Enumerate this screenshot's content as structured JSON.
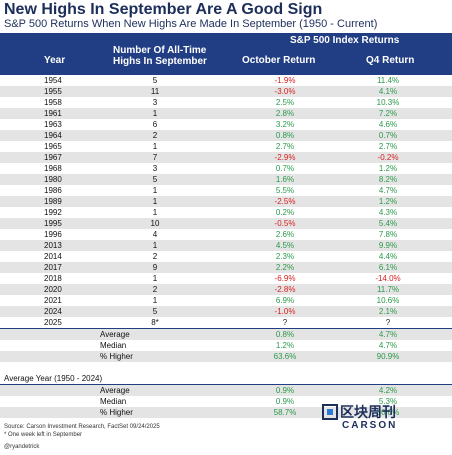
{
  "title": "New Highs In September Are A Good Sign",
  "subtitle": "S&P 500 Returns When New Highs Are Made In September (1950 - Current)",
  "header": {
    "index_returns": "S&P 500 Index Returns",
    "year": "Year",
    "num_line1": "Number Of All-Time",
    "num_line2": "Highs In September",
    "october": "October Return",
    "q4": "Q4 Return"
  },
  "rows": [
    {
      "year": "1954",
      "num": "5",
      "oct": "-1.9%",
      "q4": "11.4%"
    },
    {
      "year": "1955",
      "num": "11",
      "oct": "-3.0%",
      "q4": "4.1%"
    },
    {
      "year": "1958",
      "num": "3",
      "oct": "2.5%",
      "q4": "10.3%"
    },
    {
      "year": "1961",
      "num": "1",
      "oct": "2.8%",
      "q4": "7.2%"
    },
    {
      "year": "1963",
      "num": "6",
      "oct": "3.2%",
      "q4": "4.6%"
    },
    {
      "year": "1964",
      "num": "2",
      "oct": "0.8%",
      "q4": "0.7%"
    },
    {
      "year": "1965",
      "num": "1",
      "oct": "2.7%",
      "q4": "2.7%"
    },
    {
      "year": "1967",
      "num": "7",
      "oct": "-2.9%",
      "q4": "-0.2%"
    },
    {
      "year": "1968",
      "num": "3",
      "oct": "0.7%",
      "q4": "1.2%"
    },
    {
      "year": "1980",
      "num": "5",
      "oct": "1.6%",
      "q4": "8.2%"
    },
    {
      "year": "1986",
      "num": "1",
      "oct": "5.5%",
      "q4": "4.7%"
    },
    {
      "year": "1989",
      "num": "1",
      "oct": "-2.5%",
      "q4": "1.2%"
    },
    {
      "year": "1992",
      "num": "1",
      "oct": "0.2%",
      "q4": "4.3%"
    },
    {
      "year": "1995",
      "num": "10",
      "oct": "-0.5%",
      "q4": "5.4%"
    },
    {
      "year": "1996",
      "num": "4",
      "oct": "2.6%",
      "q4": "7.8%"
    },
    {
      "year": "2013",
      "num": "1",
      "oct": "4.5%",
      "q4": "9.9%"
    },
    {
      "year": "2014",
      "num": "2",
      "oct": "2.3%",
      "q4": "4.4%"
    },
    {
      "year": "2017",
      "num": "9",
      "oct": "2.2%",
      "q4": "6.1%"
    },
    {
      "year": "2018",
      "num": "1",
      "oct": "-6.9%",
      "q4": "-14.0%"
    },
    {
      "year": "2020",
      "num": "2",
      "oct": "-2.8%",
      "q4": "11.7%"
    },
    {
      "year": "2021",
      "num": "1",
      "oct": "6.9%",
      "q4": "10.6%"
    },
    {
      "year": "2024",
      "num": "5",
      "oct": "-1.0%",
      "q4": "2.1%"
    },
    {
      "year": "2025",
      "num": "8*",
      "oct": "?",
      "q4": "?"
    }
  ],
  "summary": [
    {
      "label": "Average",
      "oct": "0.8%",
      "q4": "4.7%"
    },
    {
      "label": "Median",
      "oct": "1.2%",
      "q4": "4.7%"
    },
    {
      "label": "% Higher",
      "oct": "63.6%",
      "q4": "90.9%"
    }
  ],
  "avg_year_title": "Average Year (1950 - 2024)",
  "avg_year": [
    {
      "label": "Average",
      "oct": "0.9%",
      "q4": "4.2%"
    },
    {
      "label": "Median",
      "oct": "0.9%",
      "q4": "5.3%"
    },
    {
      "label": "% Higher",
      "oct": "58.7%",
      "q4": "80.0%"
    }
  ],
  "footer": {
    "source": "Source: Carson Investment Research, FactSet 09/24/2025",
    "note": "* One week left in September",
    "handle": "@ryandetrick"
  },
  "logo": {
    "cn_text": "区块周刊",
    "en_text": "CARSON"
  },
  "colors": {
    "header_bg": "#213e84",
    "positive": "#2a9a4a",
    "negative": "#d62020",
    "title": "#1c2e5a"
  }
}
